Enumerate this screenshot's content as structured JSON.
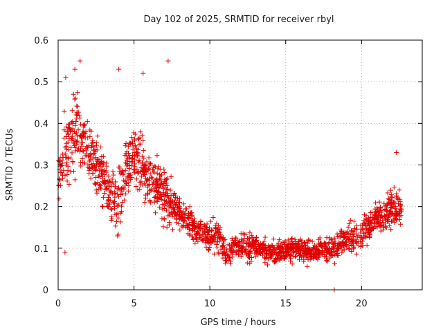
{
  "chart_data": {
    "type": "scatter",
    "title": "Day 102 of 2025, SRMTID for receiver rbyl",
    "xlabel": "GPS time / hours",
    "ylabel": "SRMTID / TECUs",
    "xlim": [
      0,
      24
    ],
    "ylim": [
      0,
      0.6
    ],
    "xticks": [
      0,
      5,
      10,
      15,
      20
    ],
    "yticks": [
      0,
      0.1,
      0.2,
      0.3,
      0.4,
      0.5,
      0.6
    ],
    "grid": true,
    "marker": "plus",
    "color": "#e00000",
    "series": [
      {
        "name": "SRMTID",
        "approx_trend": {
          "x": [
            0,
            0.5,
            1,
            1.5,
            2,
            2.5,
            3,
            3.5,
            4,
            4.5,
            5,
            5.5,
            6,
            6.5,
            7,
            7.5,
            8,
            8.5,
            9,
            9.5,
            10,
            10.5,
            11,
            11.5,
            12,
            12.5,
            13,
            13.5,
            14,
            14.5,
            15,
            15.5,
            16,
            16.5,
            17,
            17.5,
            18,
            18.5,
            19,
            19.5,
            20,
            20.5,
            21,
            21.5,
            22,
            22.5
          ],
          "y": [
            0.27,
            0.34,
            0.37,
            0.38,
            0.33,
            0.3,
            0.26,
            0.22,
            0.21,
            0.3,
            0.33,
            0.3,
            0.27,
            0.25,
            0.22,
            0.21,
            0.18,
            0.17,
            0.15,
            0.14,
            0.13,
            0.13,
            0.09,
            0.1,
            0.11,
            0.1,
            0.1,
            0.1,
            0.09,
            0.09,
            0.09,
            0.1,
            0.1,
            0.09,
            0.09,
            0.1,
            0.1,
            0.11,
            0.12,
            0.12,
            0.13,
            0.15,
            0.17,
            0.18,
            0.2,
            0.2
          ],
          "spread": [
            0.08,
            0.12,
            0.14,
            0.1,
            0.08,
            0.09,
            0.1,
            0.08,
            0.12,
            0.1,
            0.1,
            0.1,
            0.09,
            0.08,
            0.1,
            0.07,
            0.05,
            0.05,
            0.05,
            0.05,
            0.05,
            0.06,
            0.04,
            0.05,
            0.04,
            0.05,
            0.04,
            0.04,
            0.04,
            0.04,
            0.04,
            0.04,
            0.04,
            0.04,
            0.04,
            0.04,
            0.04,
            0.05,
            0.05,
            0.05,
            0.05,
            0.05,
            0.05,
            0.06,
            0.07,
            0.06
          ]
        },
        "extremes": [
          {
            "x": 0.45,
            "y": 0.09
          },
          {
            "x": 1.45,
            "y": 0.55
          },
          {
            "x": 1.1,
            "y": 0.53
          },
          {
            "x": 4.0,
            "y": 0.53
          },
          {
            "x": 5.6,
            "y": 0.52
          },
          {
            "x": 7.25,
            "y": 0.55
          },
          {
            "x": 0.5,
            "y": 0.51
          },
          {
            "x": 22.3,
            "y": 0.33
          },
          {
            "x": 18.2,
            "y": 0.0
          }
        ]
      }
    ]
  }
}
